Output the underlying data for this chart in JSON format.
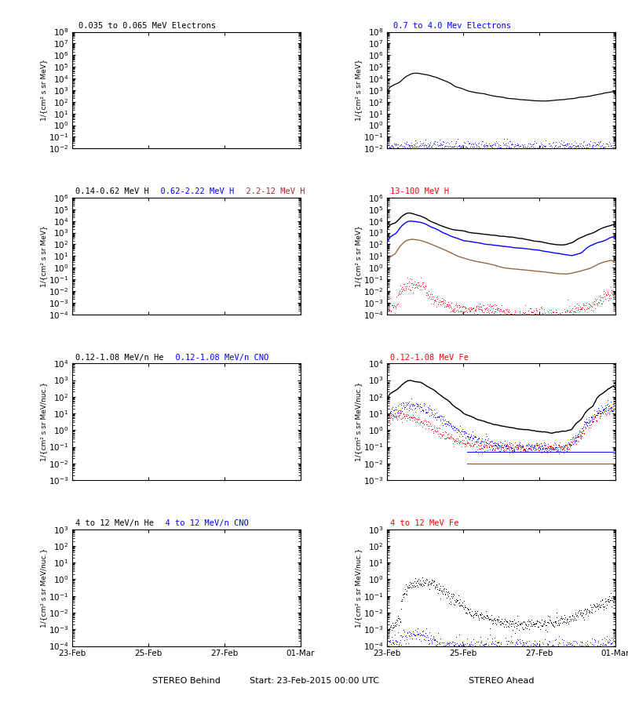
{
  "titles": {
    "r1l": [
      "0.035 to 0.065 MeV Electrons"
    ],
    "r1l_colors": [
      "black"
    ],
    "r1r": [
      "0.7 to 4.0 Mev Electrons"
    ],
    "r1r_colors": [
      "blue"
    ],
    "r2l": [
      "0.14-0.62 MeV H",
      "  0.62-2.22 MeV H",
      "  2.2-12 MeV H"
    ],
    "r2l_colors": [
      "black",
      "blue",
      "brown"
    ],
    "r2r": [
      "13-100 MeV H"
    ],
    "r2r_colors": [
      "red"
    ],
    "r3l": [
      "0.12-1.08 MeV/n He",
      "  0.12-1.08 MeV/n CNO"
    ],
    "r3l_colors": [
      "black",
      "blue"
    ],
    "r3r": [
      "0.12-1.08 MeV Fe"
    ],
    "r3r_colors": [
      "red"
    ],
    "r4l": [
      "4 to 12 MeV/n He",
      "  4 to 12 MeV/n CNO"
    ],
    "r4l_colors": [
      "black",
      "blue"
    ],
    "r4r": [
      "4 to 12 MeV Fe"
    ],
    "r4r_colors": [
      "red"
    ]
  },
  "xlabel_left": "STEREO Behind",
  "xlabel_right": "STEREO Ahead",
  "xlabel_center": "Start: 23-Feb-2015 00:00 UTC",
  "xtick_labels": [
    "23-Feb",
    "25-Feb",
    "27-Feb",
    "01-Mar"
  ],
  "ylabel_electrons": "1/{cm² s sr MeV}",
  "ylabel_ions": "1/{cm² s sr MeV/nuc.}",
  "ylims": {
    "r1": [
      0.01,
      100000000.0
    ],
    "r2": [
      0.0001,
      1000000.0
    ],
    "r3": [
      0.001,
      10000.0
    ],
    "r4l": [
      0.0001,
      1000.0
    ],
    "r4r": [
      0.0001,
      1000.0
    ]
  },
  "bg_color": "#ffffff",
  "colors": {
    "black": "#000000",
    "blue": "#0000ff",
    "brown": "#996644",
    "red": "#ff0000"
  },
  "n_points": 500,
  "seed": 42
}
